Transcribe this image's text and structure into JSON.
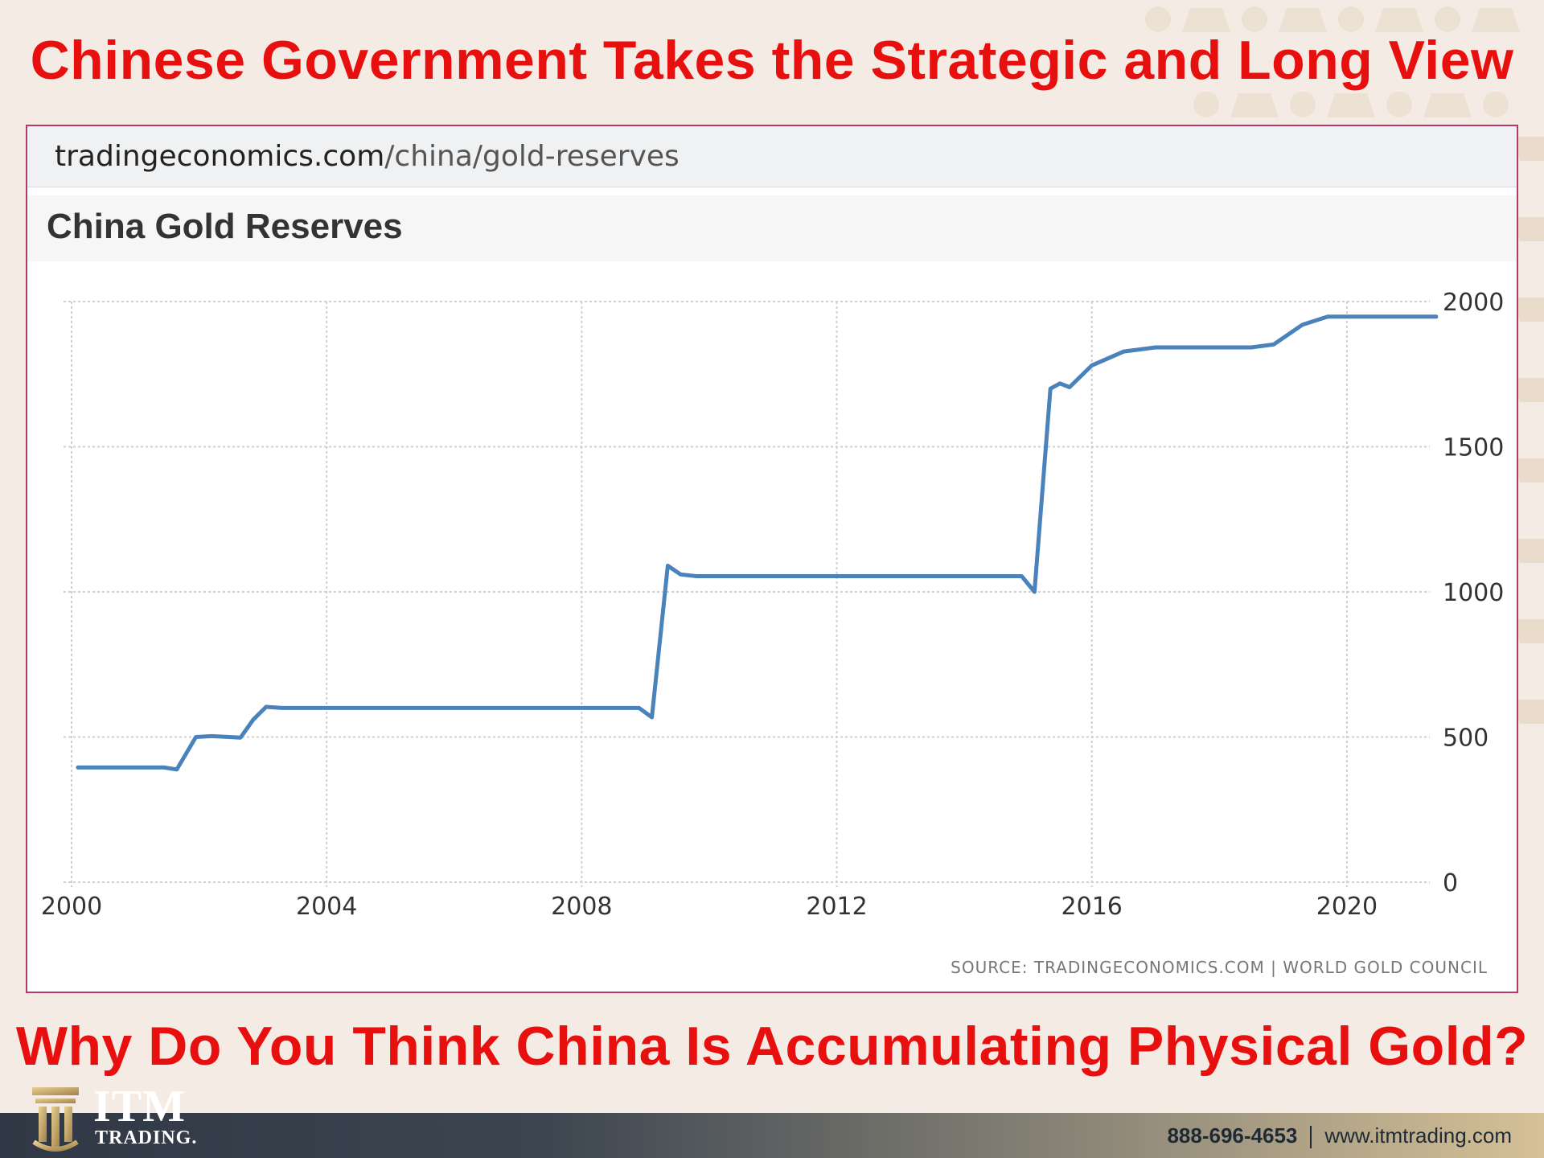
{
  "slide": {
    "title": "Chinese Government Takes the Strategic and Long View",
    "question": "Why Do You Think China Is Accumulating Physical Gold?"
  },
  "browser": {
    "domain": "tradingeconomics.com",
    "path": "/china/gold-reserves"
  },
  "source": "SOURCE: TRADINGECONOMICS.COM | WORLD GOLD COUNCIL",
  "footer": {
    "logo_main": "ITM",
    "logo_sub": "TRADING.",
    "phone": "888-696-4653",
    "website": "www.itmtrading.com"
  },
  "colors": {
    "headline": "#e8100f",
    "line": "#4a82bc",
    "frame_border": "#b33a6a"
  },
  "chart_data": {
    "type": "line",
    "title": "China Gold Reserves",
    "xlabel": "",
    "ylabel": "",
    "xlim": [
      2000,
      2022
    ],
    "ylim": [
      0,
      2000
    ],
    "x_ticks": [
      2000,
      2004,
      2008,
      2012,
      2016,
      2020
    ],
    "y_ticks": [
      0,
      500,
      1000,
      1500,
      2000
    ],
    "y_axis_side": "right",
    "grid": true,
    "series": [
      {
        "x": [
          2000.1,
          2001.45,
          2001.65,
          2001.95,
          2002.2,
          2002.65,
          2002.85,
          2003.05,
          2003.3,
          2008.9,
          2009.1,
          2009.35,
          2009.55,
          2009.8,
          2014.9,
          2015.1,
          2015.35,
          2015.5,
          2015.65,
          2016.0,
          2016.5,
          2017.0,
          2018.5,
          2018.85,
          2019.3,
          2019.7,
          2021.4
        ],
        "y": [
          395,
          395,
          388,
          500,
          503,
          498,
          560,
          604,
          600,
          600,
          568,
          1090,
          1060,
          1054,
          1054,
          1000,
          1700,
          1718,
          1705,
          1780,
          1828,
          1842,
          1842,
          1852,
          1920,
          1948,
          1948
        ]
      }
    ]
  }
}
